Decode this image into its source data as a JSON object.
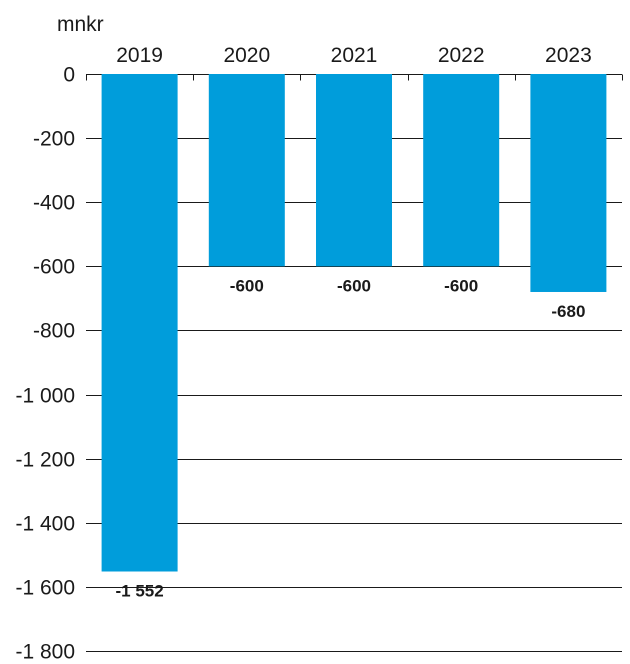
{
  "chart_data": {
    "type": "bar",
    "unit": "mnkr",
    "categories": [
      "2019",
      "2020",
      "2021",
      "2022",
      "2023"
    ],
    "values": [
      -1552,
      -600,
      -600,
      -600,
      -680
    ],
    "value_labels": [
      "-1 552",
      "-600",
      "-600",
      "-600",
      "-680"
    ],
    "ylim": [
      -1800,
      0
    ],
    "yticks": [
      0,
      -200,
      -400,
      -600,
      -800,
      -1000,
      -1200,
      -1400,
      -1600,
      -1800
    ],
    "ytick_labels": [
      "0",
      "-200",
      "-400",
      "-600",
      "-800",
      "-1 000",
      "-1 200",
      "-1 400",
      "-1 600",
      "-1 800"
    ],
    "grid": true,
    "bar_color": "#009ddb",
    "text_color": "#1a1a1a"
  }
}
